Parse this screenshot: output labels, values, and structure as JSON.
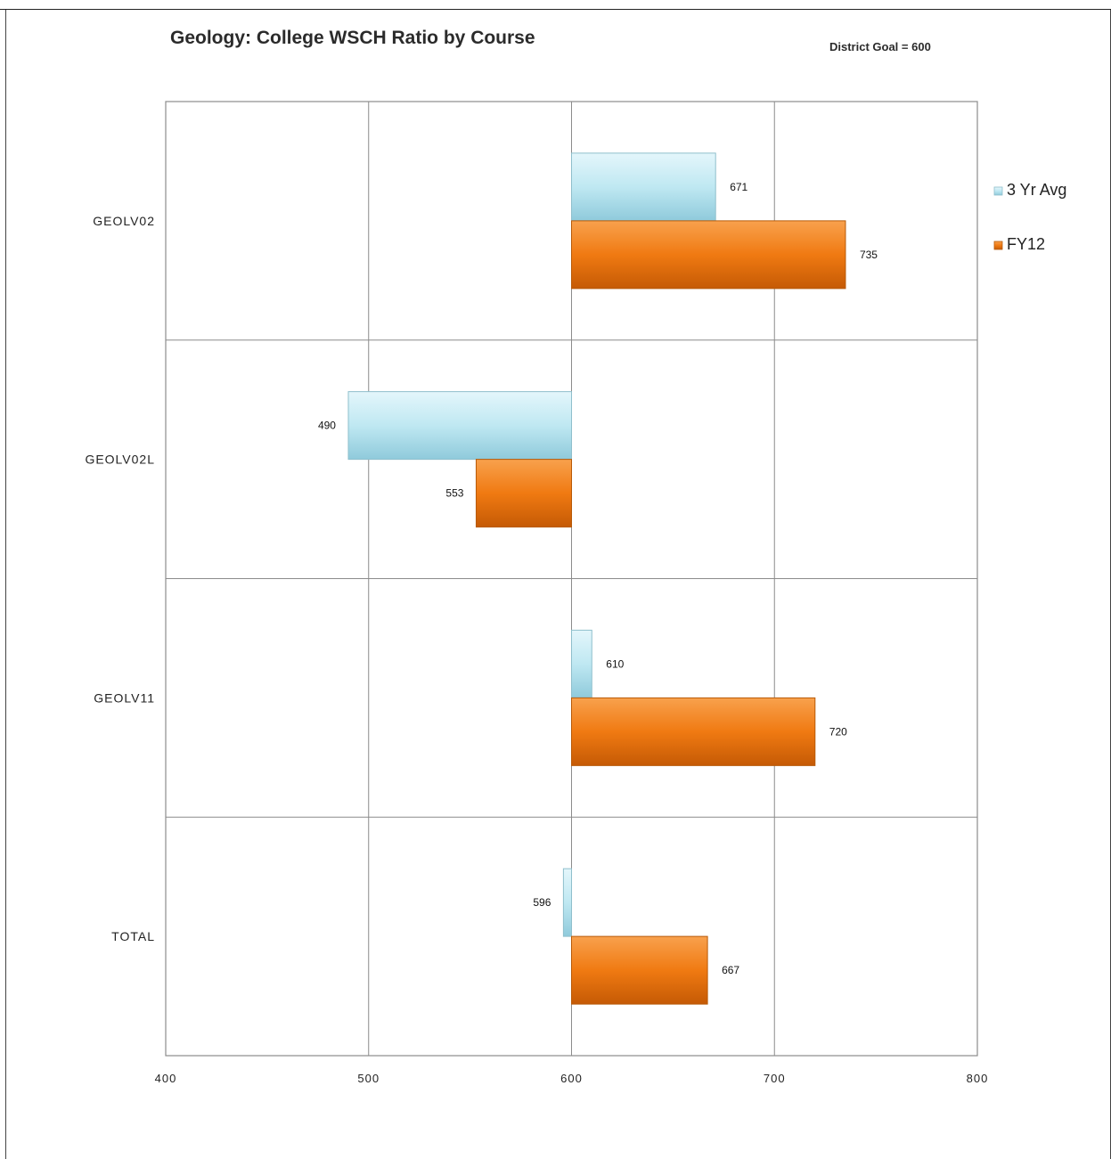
{
  "chart_data": {
    "type": "bar",
    "orientation": "horizontal",
    "title": "Geology: College WSCH Ratio by Course",
    "annotation": "District Goal = 600",
    "categories": [
      "GEOLV02",
      "GEOLV02L",
      "GEOLV11",
      "TOTAL"
    ],
    "series": [
      {
        "name": "3 Yr Avg",
        "color": "#bfe8f2",
        "values": [
          671,
          490,
          610,
          596
        ]
      },
      {
        "name": "FY12",
        "color": "#f07a12",
        "values": [
          735,
          553,
          720,
          667
        ]
      }
    ],
    "baseline": 600,
    "xlim": [
      400,
      800
    ],
    "xticks": [
      "400",
      "500",
      "600",
      "700",
      "800"
    ],
    "grid": true,
    "legend": "right"
  }
}
